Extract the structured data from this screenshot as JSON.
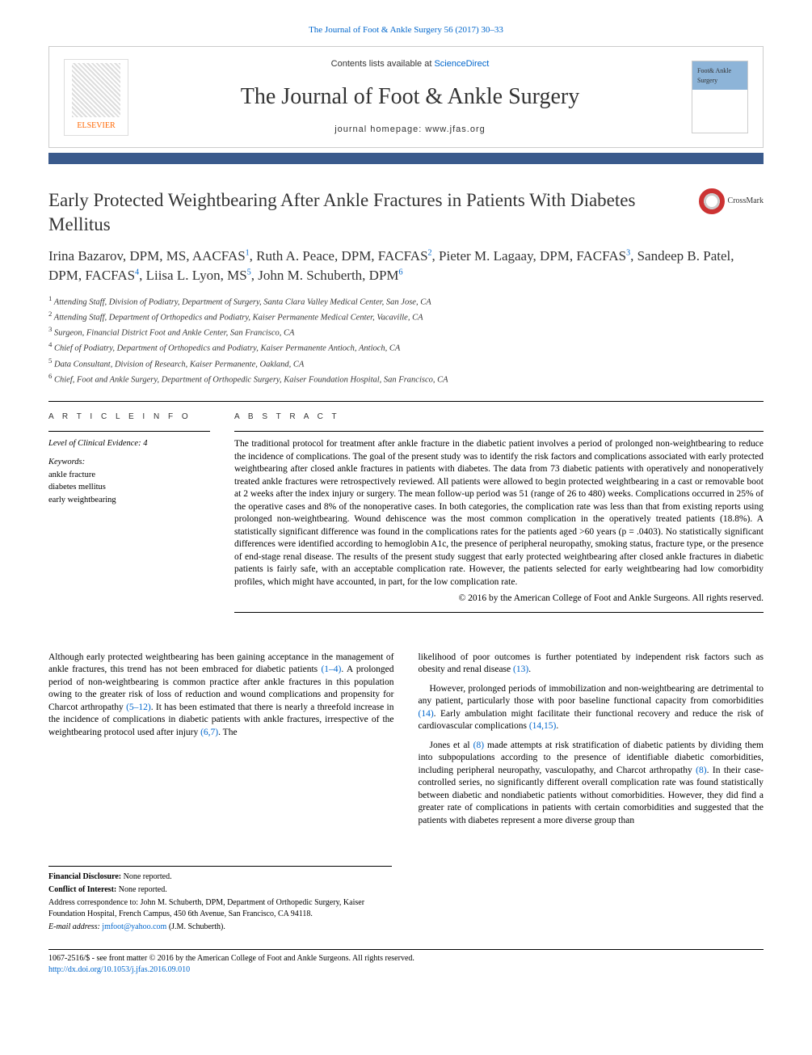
{
  "journal_reference": "The Journal of Foot & Ankle Surgery 56 (2017) 30–33",
  "header": {
    "publisher": "ELSEVIER",
    "contents_prefix": "Contents lists available at ",
    "contents_link": "ScienceDirect",
    "journal_title": "The Journal of Foot & Ankle Surgery",
    "homepage_prefix": "journal homepage: ",
    "homepage_url": "www.jfas.org",
    "cover_text": "Foot& Ankle Surgery"
  },
  "crossmark_label": "CrossMark",
  "article_title": "Early Protected Weightbearing After Ankle Fractures in Patients With Diabetes Mellitus",
  "authors_html": "Irina Bazarov, DPM, MS, AACFAS|1|, Ruth A. Peace, DPM, FACFAS|2|, Pieter M. Lagaay, DPM, FACFAS|3|, Sandeep B. Patel, DPM, FACFAS|4|, Liisa L. Lyon, MS|5|, John M. Schuberth, DPM|6|",
  "affiliations": [
    "Attending Staff, Division of Podiatry, Department of Surgery, Santa Clara Valley Medical Center, San Jose, CA",
    "Attending Staff, Department of Orthopedics and Podiatry, Kaiser Permanente Medical Center, Vacaville, CA",
    "Surgeon, Financial District Foot and Ankle Center, San Francisco, CA",
    "Chief of Podiatry, Department of Orthopedics and Podiatry, Kaiser Permanente Antioch, Antioch, CA",
    "Data Consultant, Division of Research, Kaiser Permanente, Oakland, CA",
    "Chief, Foot and Ankle Surgery, Department of Orthopedic Surgery, Kaiser Foundation Hospital, San Francisco, CA"
  ],
  "sections": {
    "article_info_heading": "A R T I C L E  I N F O",
    "abstract_heading": "A B S T R A C T",
    "loe_label": "Level of Clinical Evidence:",
    "loe_value": "4",
    "keywords_label": "Keywords:",
    "keywords": [
      "ankle fracture",
      "diabetes mellitus",
      "early weightbearing"
    ]
  },
  "abstract": "The traditional protocol for treatment after ankle fracture in the diabetic patient involves a period of prolonged non-weightbearing to reduce the incidence of complications. The goal of the present study was to identify the risk factors and complications associated with early protected weightbearing after closed ankle fractures in patients with diabetes. The data from 73 diabetic patients with operatively and nonoperatively treated ankle fractures were retrospectively reviewed. All patients were allowed to begin protected weightbearing in a cast or removable boot at 2 weeks after the index injury or surgery. The mean follow-up period was 51 (range of 26 to 480) weeks. Complications occurred in 25% of the operative cases and 8% of the nonoperative cases. In both categories, the complication rate was less than that from existing reports using prolonged non-weightbearing. Wound dehiscence was the most common complication in the operatively treated patients (18.8%). A statistically significant difference was found in the complications rates for the patients aged >60 years (p = .0403). No statistically significant differences were identified according to hemoglobin A1c, the presence of peripheral neuropathy, smoking status, fracture type, or the presence of end-stage renal disease. The results of the present study suggest that early protected weightbearing after closed ankle fractures in diabetic patients is fairly safe, with an acceptable complication rate. However, the patients selected for early weightbearing had low comorbidity profiles, which might have accounted, in part, for the low complication rate.",
  "copyright": "© 2016 by the American College of Foot and Ankle Surgeons. All rights reserved.",
  "body": {
    "left": [
      {
        "t": "Although early protected weightbearing has been gaining acceptance in the management of ankle fractures, this trend has not been embraced for diabetic patients ",
        "r": "(1–4)",
        "t2": ". A prolonged period of non-weightbearing is common practice after ankle fractures in this population owing to the greater risk of loss of reduction and wound complications and propensity for Charcot arthropathy ",
        "r2": "(5–12)",
        "t3": ". It has been estimated that there is nearly a threefold increase in the incidence of complications in diabetic patients with ankle fractures, irrespective of the weightbearing protocol used after injury ",
        "r3": "(6,7)",
        "t4": ". The"
      }
    ],
    "right": [
      {
        "t": "likelihood of poor outcomes is further potentiated by independent risk factors such as obesity and renal disease ",
        "r": "(13)",
        "t2": "."
      },
      {
        "t": "However, prolonged periods of immobilization and non-weightbearing are detrimental to any patient, particularly those with poor baseline functional capacity from comorbidities ",
        "r": "(14)",
        "t2": ". Early ambulation might facilitate their functional recovery and reduce the risk of cardiovascular complications ",
        "r2": "(14,15)",
        "t3": "."
      },
      {
        "t": "Jones et al ",
        "r": "(8)",
        "t2": " made attempts at risk stratification of diabetic patients by dividing them into subpopulations according to the presence of identifiable diabetic comorbidities, including peripheral neuropathy, vasculopathy, and Charcot arthropathy ",
        "r2": "(8)",
        "t3": ". In their case-controlled series, no significantly different overall complication rate was found statistically between diabetic and nondiabetic patients without comorbidities. However, they did find a greater rate of complications in patients with certain comorbidities and suggested that the patients with diabetes represent a more diverse group than"
      }
    ]
  },
  "footnotes": {
    "financial_label": "Financial Disclosure:",
    "financial": "None reported.",
    "conflict_label": "Conflict of Interest:",
    "conflict": "None reported.",
    "correspondence": "Address correspondence to: John M. Schuberth, DPM, Department of Orthopedic Surgery, Kaiser Foundation Hospital, French Campus, 450 6th Avenue, San Francisco, CA 94118.",
    "email_label": "E-mail address:",
    "email": "jmfoot@yahoo.com",
    "email_suffix": "(J.M. Schuberth)."
  },
  "bottom": {
    "issn": "1067-2516/$ - see front matter © 2016 by the American College of Foot and Ankle Surgeons. All rights reserved.",
    "doi": "http://dx.doi.org/10.1053/j.jfas.2016.09.010"
  },
  "colors": {
    "link": "#0066cc",
    "bar": "#3a5a8c",
    "publisher": "#ff6600"
  }
}
